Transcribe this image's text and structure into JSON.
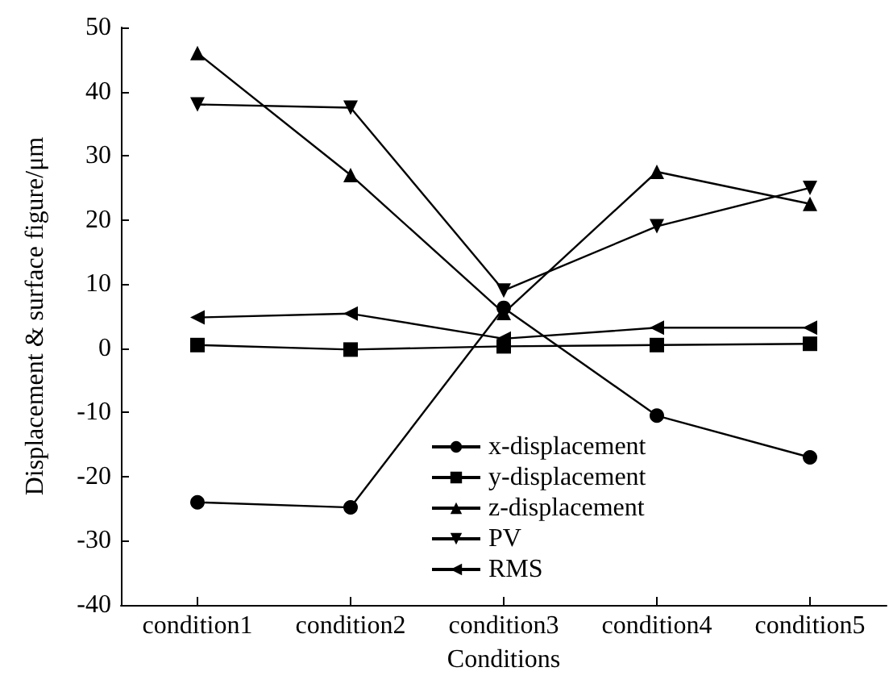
{
  "chart_data": {
    "type": "line",
    "xlabel": "Conditions",
    "ylabel": "Displacement & surface figure/μm",
    "categories": [
      "condition1",
      "condition2",
      "condition3",
      "condition4",
      "condition5"
    ],
    "series": [
      {
        "name": "x-displacement",
        "color": "#000000",
        "marker": "circle",
        "values": [
          -24,
          -24.8,
          6.3,
          -10.5,
          -17
        ]
      },
      {
        "name": "y-displacement",
        "color": "#000000",
        "marker": "square",
        "values": [
          0.5,
          -0.2,
          0.3,
          0.5,
          0.7
        ]
      },
      {
        "name": "z-displacement",
        "color": "#000000",
        "marker": "triangle",
        "values": [
          46,
          27,
          5.5,
          27.5,
          22.5
        ]
      },
      {
        "name": "PV",
        "color": "#000000",
        "marker": "triangle-down",
        "values": [
          38,
          37.5,
          9,
          19,
          25
        ]
      },
      {
        "name": "RMS",
        "color": "#000000",
        "marker": "triangle-left",
        "values": [
          4.8,
          5.4,
          1.5,
          3.2,
          3.2
        ]
      }
    ],
    "ylim": [
      -40,
      50
    ],
    "yticks": [
      -40,
      -30,
      -20,
      -10,
      0,
      10,
      20,
      30,
      40,
      50
    ],
    "grid": false,
    "legend": "bottom",
    "line_style": "solid"
  }
}
